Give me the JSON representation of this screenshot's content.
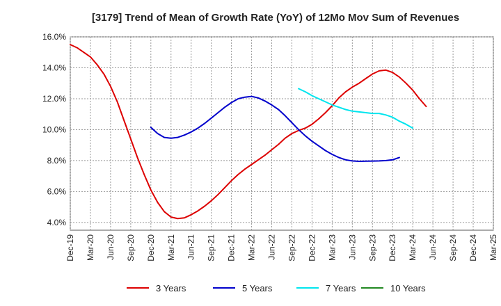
{
  "chart_data": {
    "type": "line",
    "title": "[3179]  Trend of Mean of Growth Rate (YoY) of 12Mo Mov Sum of Revenues",
    "xlabel": "",
    "ylabel": "",
    "ylim": [
      3.5,
      16.0
    ],
    "y_ticks": [
      4,
      6,
      8,
      10,
      12,
      14,
      16
    ],
    "y_tick_labels": [
      "4.0%",
      "6.0%",
      "8.0%",
      "10.0%",
      "12.0%",
      "14.0%",
      "16.0%"
    ],
    "x_tick_labels": [
      "Dec-19",
      "Mar-20",
      "Jun-20",
      "Sep-20",
      "Dec-20",
      "Mar-21",
      "Jun-21",
      "Sep-21",
      "Dec-21",
      "Mar-22",
      "Jun-22",
      "Sep-22",
      "Dec-22",
      "Mar-23",
      "Jun-23",
      "Sep-23",
      "Dec-23",
      "Mar-24",
      "Jun-24",
      "Sep-24",
      "Dec-24",
      "Mar-25"
    ],
    "grid": true,
    "legend_position": "bottom",
    "series": [
      {
        "name": "3 Years",
        "color": "#dd0000",
        "start_index": 0,
        "values": [
          15.5,
          15.3,
          15.0,
          14.7,
          14.2,
          13.6,
          12.8,
          11.8,
          10.6,
          9.4,
          8.2,
          7.1,
          6.1,
          5.3,
          4.7,
          4.35,
          4.25,
          4.3,
          4.5,
          4.75,
          5.05,
          5.4,
          5.8,
          6.25,
          6.7,
          7.1,
          7.45,
          7.75,
          8.05,
          8.35,
          8.7,
          9.05,
          9.45,
          9.75,
          9.95,
          10.1,
          10.35,
          10.7,
          11.1,
          11.55,
          12.05,
          12.45,
          12.75,
          13.0,
          13.3,
          13.6,
          13.8,
          13.85,
          13.7,
          13.4,
          13.0,
          12.55,
          12.0,
          11.5
        ]
      },
      {
        "name": "5 Years",
        "color": "#0000cc",
        "start_index": 12,
        "values": [
          10.15,
          9.75,
          9.5,
          9.45,
          9.5,
          9.65,
          9.85,
          10.1,
          10.4,
          10.75,
          11.1,
          11.45,
          11.75,
          12.0,
          12.1,
          12.15,
          12.05,
          11.85,
          11.6,
          11.3,
          10.9,
          10.45,
          10.0,
          9.6,
          9.25,
          8.95,
          8.65,
          8.4,
          8.2,
          8.05,
          7.98,
          7.95,
          7.96,
          7.97,
          7.98,
          8.0,
          8.05,
          8.2
        ]
      },
      {
        "name": "7 Years",
        "color": "#00e5ee",
        "start_index": 34,
        "values": [
          12.65,
          12.45,
          12.2,
          12.0,
          11.8,
          11.6,
          11.45,
          11.3,
          11.2,
          11.15,
          11.1,
          11.05,
          11.05,
          10.95,
          10.8,
          10.55,
          10.35,
          10.1
        ]
      },
      {
        "name": "10 Years",
        "color": "#228822",
        "start_index": 0,
        "values": []
      }
    ]
  }
}
